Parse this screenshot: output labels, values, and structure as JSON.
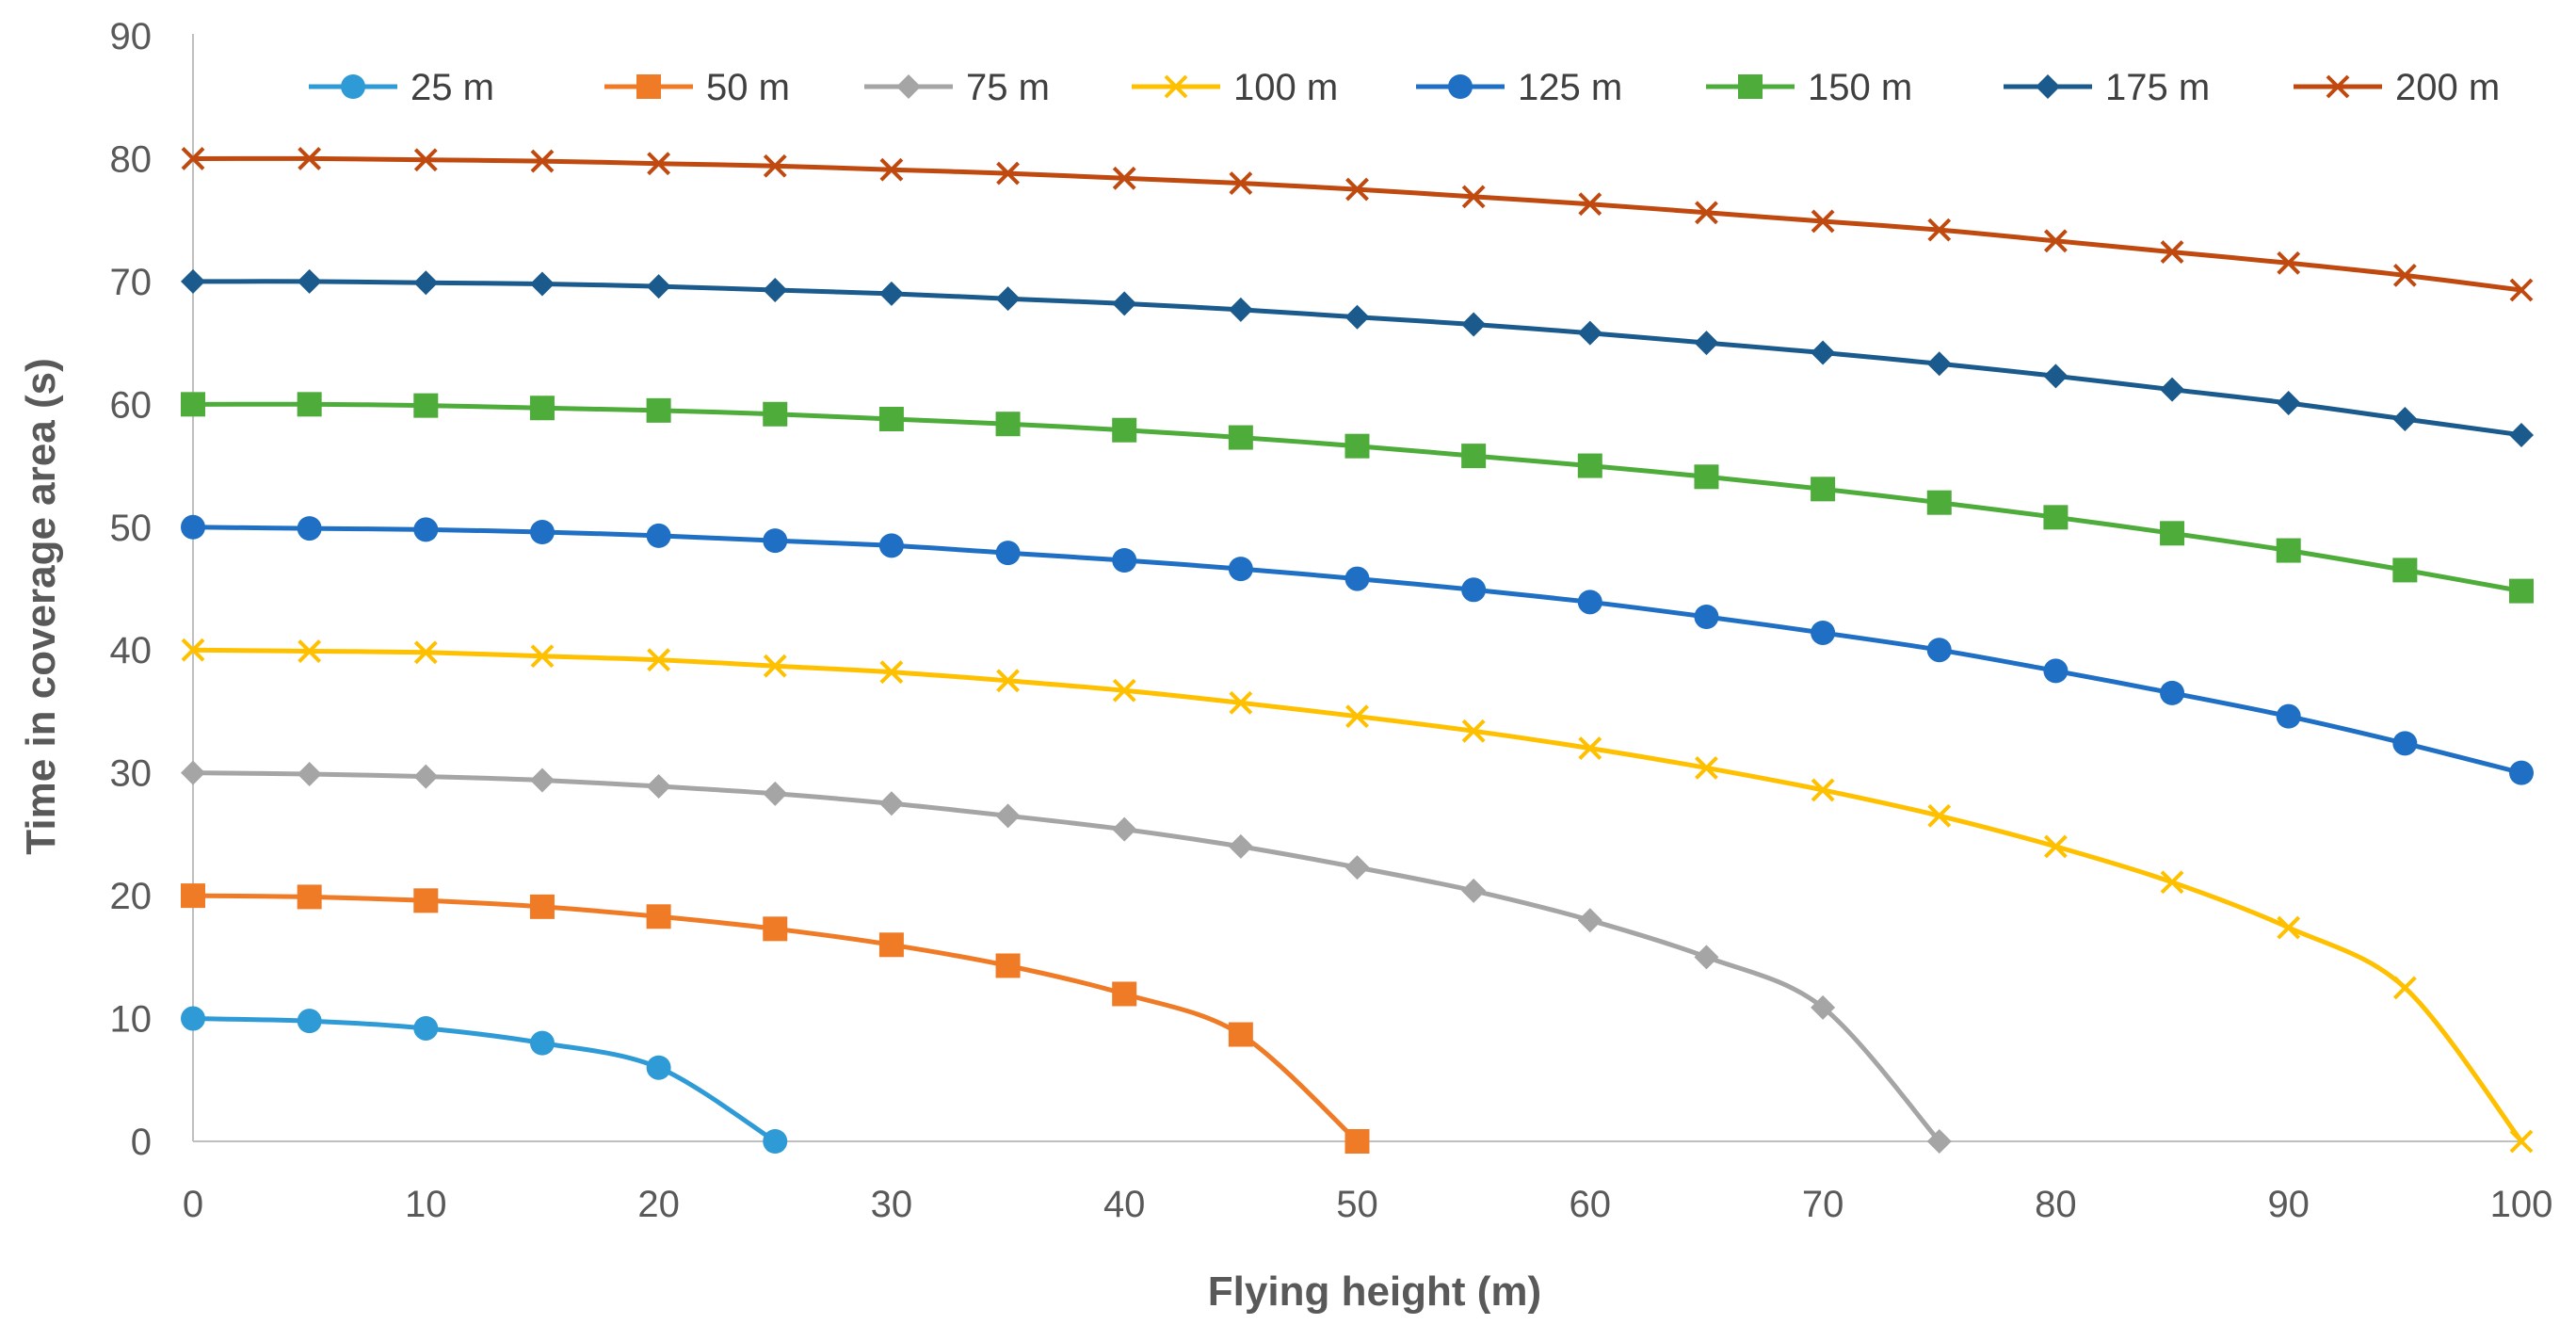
{
  "chart_data": {
    "type": "line",
    "title": "",
    "xlabel": "Flying height (m)",
    "ylabel": "Time in coverage area (s)",
    "xlim": [
      0,
      100
    ],
    "ylim": [
      0,
      90
    ],
    "xticks": [
      0,
      10,
      20,
      30,
      40,
      50,
      60,
      70,
      80,
      90,
      100
    ],
    "yticks": [
      0,
      10,
      20,
      30,
      40,
      50,
      60,
      70,
      80,
      90
    ],
    "grid": false,
    "legend_position": "top",
    "series": [
      {
        "name": "25 m",
        "color": "#2E9BD6",
        "marker": "circle",
        "x": [
          0,
          5,
          10,
          15,
          20,
          25
        ],
        "values": [
          10,
          9.8,
          9.2,
          8.0,
          6.0,
          0
        ]
      },
      {
        "name": "50 m",
        "color": "#F07B26",
        "marker": "square",
        "x": [
          0,
          5,
          10,
          15,
          20,
          25,
          30,
          35,
          40,
          45,
          50
        ],
        "values": [
          20,
          19.9,
          19.6,
          19.1,
          18.3,
          17.3,
          16.0,
          14.3,
          12.0,
          8.7,
          0
        ]
      },
      {
        "name": "75 m",
        "color": "#A5A5A5",
        "marker": "diamond",
        "x": [
          0,
          5,
          10,
          15,
          20,
          25,
          30,
          35,
          40,
          45,
          50,
          55,
          60,
          65,
          70,
          75
        ],
        "values": [
          30,
          29.9,
          29.7,
          29.4,
          28.9,
          28.3,
          27.5,
          26.5,
          25.4,
          24.0,
          22.3,
          20.4,
          18.0,
          15.0,
          10.9,
          0
        ]
      },
      {
        "name": "100 m",
        "color": "#FFC000",
        "marker": "x",
        "x": [
          0,
          5,
          10,
          15,
          20,
          25,
          30,
          35,
          40,
          45,
          50,
          55,
          60,
          65,
          70,
          75,
          80,
          85,
          90,
          95,
          100
        ],
        "values": [
          40,
          39.9,
          39.8,
          39.5,
          39.2,
          38.7,
          38.2,
          37.5,
          36.7,
          35.7,
          34.6,
          33.4,
          32.0,
          30.4,
          28.6,
          26.5,
          24.0,
          21.1,
          17.4,
          12.5,
          0
        ]
      },
      {
        "name": "125 m",
        "color": "#1F6FC5",
        "marker": "circle",
        "x": [
          0,
          5,
          10,
          15,
          20,
          25,
          30,
          35,
          40,
          45,
          50,
          55,
          60,
          65,
          70,
          75,
          80,
          85,
          90,
          95,
          100
        ],
        "values": [
          50,
          49.9,
          49.8,
          49.6,
          49.3,
          48.9,
          48.5,
          47.9,
          47.3,
          46.6,
          45.8,
          44.9,
          43.9,
          42.7,
          41.4,
          40.0,
          38.3,
          36.5,
          34.6,
          32.4,
          30.0
        ]
      },
      {
        "name": "150 m",
        "color": "#4EAC3B",
        "marker": "square",
        "x": [
          0,
          5,
          10,
          15,
          20,
          25,
          30,
          35,
          40,
          45,
          50,
          55,
          60,
          65,
          70,
          75,
          80,
          85,
          90,
          95,
          100
        ],
        "values": [
          60,
          60.0,
          59.9,
          59.7,
          59.5,
          59.2,
          58.8,
          58.4,
          57.9,
          57.3,
          56.6,
          55.8,
          55.0,
          54.1,
          53.1,
          52.0,
          50.8,
          49.5,
          48.1,
          46.5,
          44.8
        ]
      },
      {
        "name": "175 m",
        "color": "#1A5A8C",
        "marker": "diamond",
        "x": [
          0,
          5,
          10,
          15,
          20,
          25,
          30,
          35,
          40,
          45,
          50,
          55,
          60,
          65,
          70,
          75,
          80,
          85,
          90,
          95,
          100
        ],
        "values": [
          70,
          70.0,
          69.9,
          69.8,
          69.6,
          69.3,
          69.0,
          68.6,
          68.2,
          67.7,
          67.1,
          66.5,
          65.8,
          65.0,
          64.2,
          63.3,
          62.3,
          61.2,
          60.1,
          58.8,
          57.5
        ]
      },
      {
        "name": "200 m",
        "color": "#C0490F",
        "marker": "x",
        "x": [
          0,
          5,
          10,
          15,
          20,
          25,
          30,
          35,
          40,
          45,
          50,
          55,
          60,
          65,
          70,
          75,
          80,
          85,
          90,
          95,
          100
        ],
        "values": [
          80,
          80.0,
          79.9,
          79.8,
          79.6,
          79.4,
          79.1,
          78.8,
          78.4,
          78.0,
          77.5,
          76.9,
          76.3,
          75.6,
          74.9,
          74.2,
          73.3,
          72.4,
          71.5,
          70.5,
          69.3
        ]
      }
    ]
  }
}
